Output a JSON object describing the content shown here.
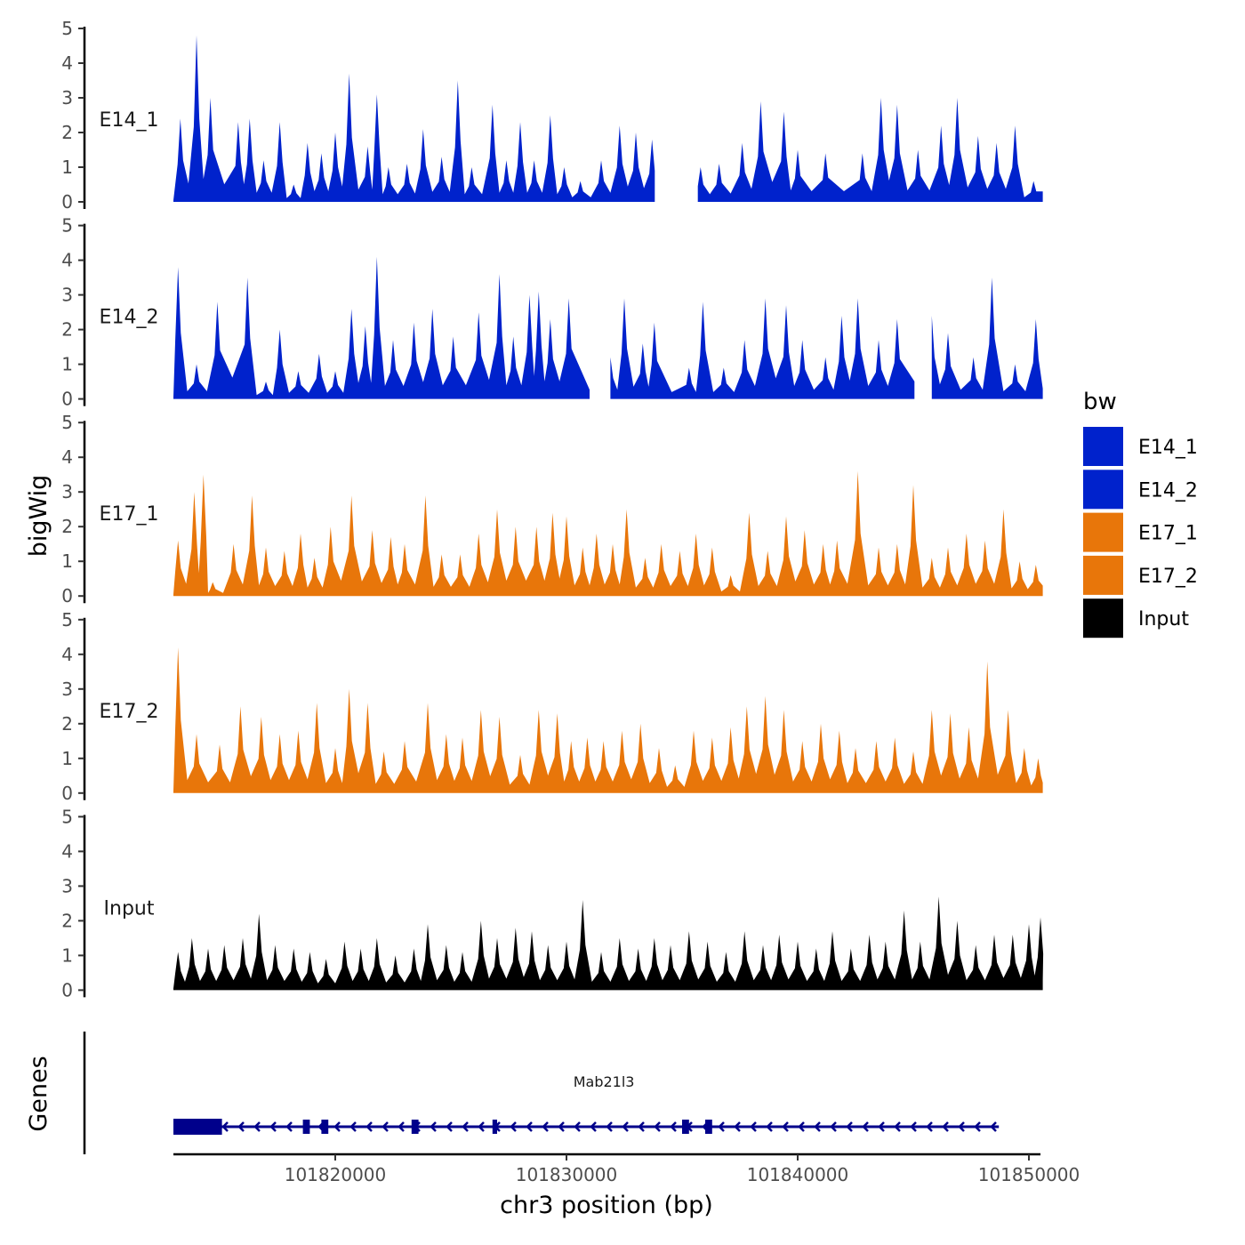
{
  "chart_data": {
    "type": "area",
    "ylabel": "bigWig",
    "xlabel": "chr3 position (bp)",
    "ylim": [
      0,
      5
    ],
    "yticks": [
      0,
      1,
      2,
      3,
      4,
      5
    ],
    "xlim": [
      101813000,
      101850500
    ],
    "xticks": [
      101820000,
      101830000,
      101840000,
      101850000
    ],
    "xtick_labels": [
      "101820000",
      "101830000",
      "101840000",
      "101850000"
    ],
    "legend": {
      "title": "bw",
      "entries": [
        {
          "label": "E14_1",
          "color": "#0022CC"
        },
        {
          "label": "E14_2",
          "color": "#0022CC"
        },
        {
          "label": "E17_1",
          "color": "#E8760A"
        },
        {
          "label": "E17_2",
          "color": "#E8760A"
        },
        {
          "label": "Input",
          "color": "#000000"
        }
      ]
    },
    "tracks": [
      {
        "name": "E14_1",
        "color": "#0022CC",
        "x_start": 101813000,
        "x_end": 101850600,
        "gaps": [
          [
            101834700,
            101835400
          ]
        ],
        "peaks": [
          [
            101813300,
            2.4
          ],
          [
            101814000,
            4.8
          ],
          [
            101814600,
            3.0
          ],
          [
            101815800,
            2.3
          ],
          [
            101816300,
            2.4
          ],
          [
            101816900,
            1.2
          ],
          [
            101817600,
            2.3
          ],
          [
            101818200,
            0.5
          ],
          [
            101818800,
            1.7
          ],
          [
            101819400,
            1.4
          ],
          [
            101820000,
            2.0
          ],
          [
            101820600,
            3.7
          ],
          [
            101821400,
            1.6
          ],
          [
            101821800,
            3.1
          ],
          [
            101822300,
            1.0
          ],
          [
            101823100,
            1.1
          ],
          [
            101823800,
            2.1
          ],
          [
            101824600,
            1.3
          ],
          [
            101825300,
            3.5
          ],
          [
            101825900,
            1.0
          ],
          [
            101826800,
            2.8
          ],
          [
            101827400,
            1.2
          ],
          [
            101828000,
            2.3
          ],
          [
            101828600,
            1.2
          ],
          [
            101829300,
            2.5
          ],
          [
            101829900,
            1.0
          ],
          [
            101830600,
            0.6
          ],
          [
            101831500,
            1.2
          ],
          [
            101832300,
            2.2
          ],
          [
            101833000,
            2.0
          ],
          [
            101833700,
            1.8
          ],
          [
            101835800,
            1.0
          ],
          [
            101836600,
            1.1
          ],
          [
            101837600,
            1.7
          ],
          [
            101838400,
            2.9
          ],
          [
            101839400,
            2.6
          ],
          [
            101840000,
            1.5
          ],
          [
            101841200,
            1.4
          ],
          [
            101842800,
            1.4
          ],
          [
            101843600,
            3.0
          ],
          [
            101844300,
            2.8
          ],
          [
            101845200,
            1.5
          ],
          [
            101846200,
            2.2
          ],
          [
            101846900,
            3.0
          ],
          [
            101847800,
            1.9
          ],
          [
            101848600,
            1.7
          ],
          [
            101849400,
            2.2
          ],
          [
            101850200,
            0.6
          ]
        ]
      },
      {
        "name": "E14_2",
        "color": "#0022CC",
        "x_start": 101813000,
        "x_end": 101850600,
        "gaps": [
          [
            101831300,
            101831800
          ],
          [
            101834300,
            101834500
          ],
          [
            101845400,
            101845700
          ]
        ],
        "peaks": [
          [
            101813200,
            3.8
          ],
          [
            101814000,
            1.0
          ],
          [
            101814900,
            2.8
          ],
          [
            101816200,
            3.5
          ],
          [
            101817000,
            0.5
          ],
          [
            101817600,
            2.0
          ],
          [
            101818400,
            0.8
          ],
          [
            101819300,
            1.3
          ],
          [
            101820000,
            0.8
          ],
          [
            101820700,
            2.6
          ],
          [
            101821300,
            2.1
          ],
          [
            101821800,
            4.1
          ],
          [
            101822500,
            1.7
          ],
          [
            101823400,
            2.2
          ],
          [
            101824200,
            2.6
          ],
          [
            101825100,
            1.8
          ],
          [
            101826200,
            2.5
          ],
          [
            101827100,
            3.6
          ],
          [
            101827700,
            1.8
          ],
          [
            101828400,
            3.0
          ],
          [
            101828800,
            3.1
          ],
          [
            101829300,
            2.3
          ],
          [
            101830100,
            2.9
          ],
          [
            101831900,
            1.2
          ],
          [
            101832500,
            2.9
          ],
          [
            101833300,
            1.6
          ],
          [
            101833800,
            2.2
          ],
          [
            101835300,
            0.9
          ],
          [
            101835900,
            2.8
          ],
          [
            101836800,
            0.9
          ],
          [
            101837700,
            1.7
          ],
          [
            101838600,
            2.9
          ],
          [
            101839500,
            2.7
          ],
          [
            101840200,
            1.7
          ],
          [
            101841200,
            1.2
          ],
          [
            101841900,
            2.4
          ],
          [
            101842600,
            2.9
          ],
          [
            101843500,
            1.7
          ],
          [
            101844300,
            2.3
          ],
          [
            101845800,
            2.4
          ],
          [
            101846500,
            1.9
          ],
          [
            101847600,
            1.2
          ],
          [
            101848400,
            3.5
          ],
          [
            101849400,
            1.0
          ],
          [
            101850300,
            2.3
          ]
        ]
      },
      {
        "name": "E17_1",
        "color": "#E8760A",
        "x_start": 101813000,
        "x_end": 101850600,
        "gaps": [],
        "peaks": [
          [
            101813200,
            1.6
          ],
          [
            101813900,
            3.0
          ],
          [
            101814300,
            3.5
          ],
          [
            101814700,
            0.4
          ],
          [
            101815600,
            1.5
          ],
          [
            101816400,
            2.9
          ],
          [
            101817000,
            1.4
          ],
          [
            101817800,
            1.3
          ],
          [
            101818500,
            1.8
          ],
          [
            101819100,
            1.1
          ],
          [
            101819800,
            2.0
          ],
          [
            101820700,
            2.9
          ],
          [
            101821600,
            1.9
          ],
          [
            101822400,
            1.7
          ],
          [
            101823000,
            1.5
          ],
          [
            101823900,
            2.9
          ],
          [
            101824600,
            1.2
          ],
          [
            101825400,
            1.2
          ],
          [
            101826200,
            1.8
          ],
          [
            101827000,
            2.5
          ],
          [
            101827800,
            2.0
          ],
          [
            101828700,
            2.0
          ],
          [
            101829400,
            2.4
          ],
          [
            101830000,
            2.3
          ],
          [
            101830700,
            1.4
          ],
          [
            101831300,
            1.8
          ],
          [
            101832000,
            1.5
          ],
          [
            101832600,
            2.5
          ],
          [
            101833400,
            1.1
          ],
          [
            101834100,
            1.5
          ],
          [
            101834900,
            1.3
          ],
          [
            101835600,
            1.8
          ],
          [
            101836300,
            1.4
          ],
          [
            101837100,
            0.6
          ],
          [
            101837900,
            2.4
          ],
          [
            101838700,
            1.3
          ],
          [
            101839500,
            2.3
          ],
          [
            101840300,
            1.9
          ],
          [
            101841100,
            1.5
          ],
          [
            101841700,
            1.6
          ],
          [
            101842600,
            3.6
          ],
          [
            101843500,
            1.4
          ],
          [
            101844300,
            1.5
          ],
          [
            101845000,
            3.2
          ],
          [
            101845800,
            1.1
          ],
          [
            101846500,
            1.4
          ],
          [
            101847300,
            1.8
          ],
          [
            101848100,
            1.6
          ],
          [
            101848900,
            2.5
          ],
          [
            101849600,
            1.0
          ],
          [
            101850300,
            0.9
          ]
        ]
      },
      {
        "name": "E17_2",
        "color": "#E8760A",
        "x_start": 101813000,
        "x_end": 101850600,
        "gaps": [],
        "peaks": [
          [
            101813200,
            4.2
          ],
          [
            101814000,
            1.7
          ],
          [
            101815000,
            1.4
          ],
          [
            101815900,
            2.5
          ],
          [
            101816800,
            2.2
          ],
          [
            101817600,
            1.7
          ],
          [
            101818400,
            1.8
          ],
          [
            101819200,
            2.6
          ],
          [
            101820000,
            1.3
          ],
          [
            101820600,
            3.0
          ],
          [
            101821400,
            2.6
          ],
          [
            101822100,
            1.2
          ],
          [
            101823000,
            1.5
          ],
          [
            101824000,
            2.6
          ],
          [
            101824800,
            1.7
          ],
          [
            101825500,
            1.6
          ],
          [
            101826300,
            2.4
          ],
          [
            101827100,
            2.2
          ],
          [
            101828000,
            1.1
          ],
          [
            101828800,
            2.4
          ],
          [
            101829600,
            2.3
          ],
          [
            101830200,
            1.5
          ],
          [
            101830900,
            1.6
          ],
          [
            101831600,
            1.5
          ],
          [
            101832400,
            1.8
          ],
          [
            101833200,
            2.0
          ],
          [
            101834000,
            1.3
          ],
          [
            101834700,
            0.8
          ],
          [
            101835500,
            1.8
          ],
          [
            101836300,
            1.6
          ],
          [
            101837100,
            1.9
          ],
          [
            101837800,
            2.5
          ],
          [
            101838600,
            2.8
          ],
          [
            101839400,
            2.4
          ],
          [
            101840200,
            1.5
          ],
          [
            101841000,
            2.0
          ],
          [
            101841800,
            1.8
          ],
          [
            101842500,
            1.3
          ],
          [
            101843400,
            1.5
          ],
          [
            101844200,
            1.6
          ],
          [
            101845000,
            1.2
          ],
          [
            101845800,
            2.4
          ],
          [
            101846600,
            2.3
          ],
          [
            101847400,
            1.9
          ],
          [
            101848200,
            3.8
          ],
          [
            101849100,
            2.4
          ],
          [
            101849800,
            1.3
          ],
          [
            101850400,
            1.0
          ]
        ]
      },
      {
        "name": "Input",
        "color": "#000000",
        "x_start": 101813000,
        "x_end": 101850600,
        "gaps": [],
        "peaks": [
          [
            101813200,
            1.1
          ],
          [
            101813800,
            1.5
          ],
          [
            101814500,
            1.2
          ],
          [
            101815200,
            1.3
          ],
          [
            101816000,
            1.5
          ],
          [
            101816700,
            2.2
          ],
          [
            101817400,
            1.3
          ],
          [
            101818200,
            1.2
          ],
          [
            101818900,
            1.1
          ],
          [
            101819600,
            0.9
          ],
          [
            101820400,
            1.4
          ],
          [
            101821100,
            1.2
          ],
          [
            101821800,
            1.5
          ],
          [
            101822600,
            1.0
          ],
          [
            101823400,
            1.2
          ],
          [
            101824000,
            1.9
          ],
          [
            101824800,
            1.3
          ],
          [
            101825500,
            1.1
          ],
          [
            101826300,
            2.0
          ],
          [
            101827000,
            1.5
          ],
          [
            101827800,
            1.8
          ],
          [
            101828500,
            1.7
          ],
          [
            101829200,
            1.3
          ],
          [
            101830000,
            1.4
          ],
          [
            101830700,
            2.6
          ],
          [
            101831500,
            1.1
          ],
          [
            101832300,
            1.5
          ],
          [
            101833100,
            1.2
          ],
          [
            101833800,
            1.5
          ],
          [
            101834500,
            1.3
          ],
          [
            101835300,
            1.7
          ],
          [
            101836100,
            1.4
          ],
          [
            101836900,
            1.1
          ],
          [
            101837700,
            1.7
          ],
          [
            101838500,
            1.3
          ],
          [
            101839200,
            1.6
          ],
          [
            101840000,
            1.4
          ],
          [
            101840800,
            1.2
          ],
          [
            101841500,
            1.7
          ],
          [
            101842300,
            1.2
          ],
          [
            101843100,
            1.6
          ],
          [
            101843800,
            1.4
          ],
          [
            101844600,
            2.3
          ],
          [
            101845300,
            1.4
          ],
          [
            101846100,
            2.7
          ],
          [
            101846900,
            2.0
          ],
          [
            101847700,
            1.3
          ],
          [
            101848500,
            1.6
          ],
          [
            101849300,
            1.6
          ],
          [
            101850000,
            1.9
          ],
          [
            101850500,
            2.1
          ]
        ]
      }
    ],
    "genes": {
      "title": "Genes",
      "items": [
        {
          "name": "Mab21l3",
          "strand": "-",
          "start": 101813000,
          "end": 101848700,
          "color": "#00008B",
          "exons": [
            [
              101813000,
              101815100
            ],
            [
              101818600,
              101818900
            ],
            [
              101819400,
              101819700
            ],
            [
              101823300,
              101823600
            ],
            [
              101826800,
              101827000
            ],
            [
              101835000,
              101835300
            ],
            [
              101836000,
              101836300
            ]
          ]
        }
      ]
    }
  }
}
